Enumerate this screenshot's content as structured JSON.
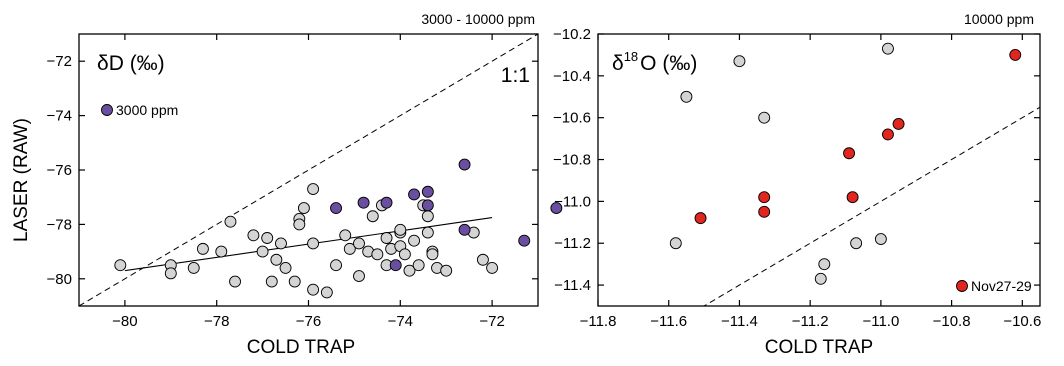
{
  "y_axis_title": "LASER (RAW)",
  "chart_data": [
    {
      "type": "scatter",
      "panel_label": "δD (‰)",
      "top_note": "3000 - 10000 ppm",
      "one_to_one_label": "1:1",
      "xlabel": "COLD TRAP",
      "xlim": [
        -81,
        -71
      ],
      "ylim": [
        -81,
        -71
      ],
      "xticks": [
        -80,
        -78,
        -76,
        -74,
        -72
      ],
      "yticks": [
        -80,
        -78,
        -76,
        -74,
        -72
      ],
      "grid": false,
      "legend": [
        {
          "label": "3000 ppm",
          "color": "#6a4fa0",
          "position": "left"
        }
      ],
      "regression_line": {
        "x": [
          -80,
          -72
        ],
        "y": [
          -79.7,
          -77.75
        ]
      },
      "series": [
        {
          "color": "#d4d4d4",
          "points": [
            [
              -80.1,
              -79.5
            ],
            [
              -79.0,
              -79.5
            ],
            [
              -79.0,
              -79.8
            ],
            [
              -78.5,
              -79.6
            ],
            [
              -78.3,
              -78.9
            ],
            [
              -77.9,
              -79.0
            ],
            [
              -77.7,
              -77.9
            ],
            [
              -77.6,
              -80.1
            ],
            [
              -77.2,
              -78.4
            ],
            [
              -77.0,
              -79.0
            ],
            [
              -76.9,
              -78.5
            ],
            [
              -76.8,
              -80.1
            ],
            [
              -76.7,
              -79.3
            ],
            [
              -76.6,
              -78.7
            ],
            [
              -76.5,
              -79.6
            ],
            [
              -76.3,
              -80.1
            ],
            [
              -76.2,
              -77.8
            ],
            [
              -76.2,
              -78.0
            ],
            [
              -76.1,
              -77.4
            ],
            [
              -75.9,
              -78.7
            ],
            [
              -75.9,
              -80.4
            ],
            [
              -75.9,
              -76.7
            ],
            [
              -75.6,
              -80.5
            ],
            [
              -75.4,
              -79.5
            ],
            [
              -75.2,
              -78.4
            ],
            [
              -75.1,
              -78.9
            ],
            [
              -74.9,
              -78.7
            ],
            [
              -74.9,
              -79.9
            ],
            [
              -74.7,
              -79.0
            ],
            [
              -74.6,
              -77.7
            ],
            [
              -74.5,
              -79.1
            ],
            [
              -74.4,
              -77.3
            ],
            [
              -74.3,
              -78.5
            ],
            [
              -74.3,
              -79.5
            ],
            [
              -74.2,
              -78.9
            ],
            [
              -74.0,
              -78.3
            ],
            [
              -74.0,
              -78.2
            ],
            [
              -74.0,
              -78.8
            ],
            [
              -73.9,
              -79.1
            ],
            [
              -73.8,
              -79.7
            ],
            [
              -73.7,
              -78.6
            ],
            [
              -73.6,
              -79.5
            ],
            [
              -73.5,
              -77.3
            ],
            [
              -73.4,
              -78.3
            ],
            [
              -73.4,
              -77.7
            ],
            [
              -73.3,
              -79.0
            ],
            [
              -73.3,
              -79.1
            ],
            [
              -73.2,
              -79.6
            ],
            [
              -73.0,
              -79.7
            ],
            [
              -72.4,
              -78.3
            ],
            [
              -72.2,
              -79.3
            ],
            [
              -72.0,
              -79.6
            ]
          ]
        },
        {
          "color": "#6a4fa0",
          "points": [
            [
              -75.4,
              -77.4
            ],
            [
              -74.8,
              -77.2
            ],
            [
              -74.3,
              -77.2
            ],
            [
              -74.1,
              -79.5
            ],
            [
              -73.7,
              -76.9
            ],
            [
              -73.4,
              -76.8
            ],
            [
              -73.4,
              -77.3
            ],
            [
              -72.6,
              -75.8
            ],
            [
              -72.6,
              -78.2
            ],
            [
              -71.3,
              -78.6
            ],
            [
              -70.6,
              -77.4
            ]
          ]
        }
      ]
    },
    {
      "type": "scatter",
      "panel_label_base": "δ",
      "panel_label_sup": "18",
      "panel_label_rest": "O (‰)",
      "top_note": "10000 ppm",
      "xlabel": "COLD TRAP",
      "xlim": [
        -11.8,
        -10.55
      ],
      "ylim": [
        -11.5,
        -10.2
      ],
      "xticks": [
        "-11.8",
        "-11.6",
        "-11.4",
        "-11.2",
        "-11.0",
        "-10.8",
        "-10.6"
      ],
      "yticks": [
        "-11.4",
        "-11.2",
        "-11.0",
        "-10.8",
        "-10.6",
        "-10.4",
        "-10.2"
      ],
      "grid": false,
      "legend": [
        {
          "label": "Nov27-29",
          "color": "#e0261e",
          "position": "bottom-right"
        }
      ],
      "series": [
        {
          "color": "#d4d4d4",
          "points": [
            [
              -11.58,
              -11.2
            ],
            [
              -11.55,
              -10.5
            ],
            [
              -11.4,
              -10.33
            ],
            [
              -11.33,
              -10.6
            ],
            [
              -11.17,
              -11.37
            ],
            [
              -11.16,
              -11.3
            ],
            [
              -11.07,
              -11.2
            ],
            [
              -11.0,
              -11.18
            ],
            [
              -10.98,
              -10.27
            ]
          ]
        },
        {
          "color": "#e0261e",
          "points": [
            [
              -11.51,
              -11.08
            ],
            [
              -11.33,
              -10.98
            ],
            [
              -11.33,
              -11.05
            ],
            [
              -11.09,
              -10.77
            ],
            [
              -11.08,
              -10.98
            ],
            [
              -10.98,
              -10.68
            ],
            [
              -10.95,
              -10.63
            ],
            [
              -10.62,
              -10.3
            ]
          ]
        }
      ]
    }
  ]
}
